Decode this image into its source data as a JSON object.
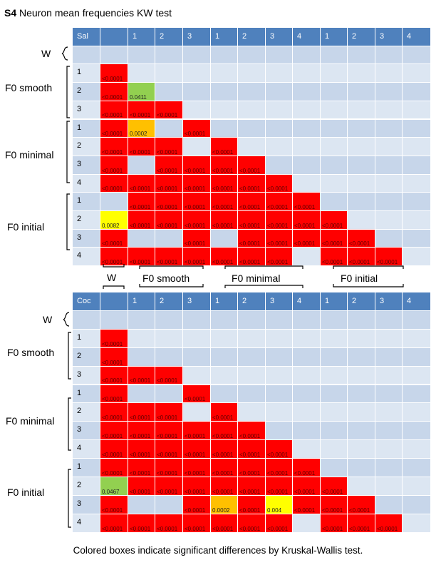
{
  "title": {
    "bold": "S4",
    "text": "Neuron mean frequencies KW test"
  },
  "caption": "Colored boxes indicate significant differences by Kruskal-Wallis test.",
  "groups": [
    "W",
    "F0 smooth",
    "F0 minimal",
    "F0 initial"
  ],
  "columns": [
    "",
    "1",
    "2",
    "3",
    "1",
    "2",
    "3",
    "4",
    "1",
    "2",
    "3",
    "4"
  ],
  "row_labels": [
    "",
    "1",
    "2",
    "3",
    "1",
    "2",
    "3",
    "4",
    "1",
    "2",
    "3",
    "4"
  ],
  "colors": {
    "red": "#ff0000",
    "green": "#92d050",
    "orange": "#ffc000",
    "yellow": "#ffff00",
    "header": "#4f81bd"
  },
  "chart_data": [
    {
      "type": "table",
      "corner": "Sal",
      "cells": [
        [
          1,
          0,
          "red",
          "<0.0001"
        ],
        [
          2,
          0,
          "red",
          "<0.0001"
        ],
        [
          2,
          1,
          "green",
          "0.0411"
        ],
        [
          3,
          0,
          "red",
          "<0.0001"
        ],
        [
          3,
          1,
          "red",
          "<0.0001"
        ],
        [
          3,
          2,
          "red",
          "<0.0001"
        ],
        [
          4,
          0,
          "red",
          "<0.0001"
        ],
        [
          4,
          1,
          "orange",
          "0.0002"
        ],
        [
          4,
          3,
          "red",
          "<0.0001"
        ],
        [
          5,
          0,
          "red",
          "<0.0001"
        ],
        [
          5,
          1,
          "red",
          "<0.0001"
        ],
        [
          5,
          2,
          "red",
          "<0.0001"
        ],
        [
          5,
          4,
          "red",
          "<0.0001"
        ],
        [
          6,
          0,
          "red",
          "<0.0001"
        ],
        [
          6,
          2,
          "red",
          "<0.0001"
        ],
        [
          6,
          3,
          "red",
          "<0.0001"
        ],
        [
          6,
          4,
          "red",
          "<0.0001"
        ],
        [
          6,
          5,
          "red",
          "<0.0001"
        ],
        [
          7,
          0,
          "red",
          "<0.0001"
        ],
        [
          7,
          1,
          "red",
          "<0.0001"
        ],
        [
          7,
          2,
          "red",
          "<0.0001"
        ],
        [
          7,
          3,
          "red",
          "<0.0001"
        ],
        [
          7,
          4,
          "red",
          "<0.0001"
        ],
        [
          7,
          5,
          "red",
          "<0.0001"
        ],
        [
          7,
          6,
          "red",
          "<0.0001"
        ],
        [
          8,
          1,
          "red",
          "<0.0001"
        ],
        [
          8,
          2,
          "red",
          "<0.0001"
        ],
        [
          8,
          3,
          "red",
          "<0.0001"
        ],
        [
          8,
          4,
          "red",
          "<0.0001"
        ],
        [
          8,
          5,
          "red",
          "<0.0001"
        ],
        [
          8,
          6,
          "red",
          "<0.0001"
        ],
        [
          8,
          7,
          "red",
          "<0.0001"
        ],
        [
          9,
          0,
          "yellow",
          "0.0082"
        ],
        [
          9,
          1,
          "red",
          "<0.0001"
        ],
        [
          9,
          2,
          "red",
          "<0.0001"
        ],
        [
          9,
          3,
          "red",
          "<0.0001"
        ],
        [
          9,
          4,
          "red",
          "<0.0001"
        ],
        [
          9,
          5,
          "red",
          "<0.0001"
        ],
        [
          9,
          6,
          "red",
          "<0.0001"
        ],
        [
          9,
          7,
          "red",
          "<0.0001"
        ],
        [
          9,
          8,
          "red",
          "<0.0001"
        ],
        [
          10,
          0,
          "red",
          "<0.0001"
        ],
        [
          10,
          3,
          "red",
          "<0.0001"
        ],
        [
          10,
          5,
          "red",
          "<0.0001"
        ],
        [
          10,
          6,
          "red",
          "<0.0001"
        ],
        [
          10,
          7,
          "red",
          "<0.0001"
        ],
        [
          10,
          8,
          "red",
          "<0.0001"
        ],
        [
          10,
          9,
          "red",
          "<0.0001"
        ],
        [
          11,
          0,
          "red",
          "<0.0001"
        ],
        [
          11,
          1,
          "red",
          "<0.0001"
        ],
        [
          11,
          2,
          "red",
          "<0.0001"
        ],
        [
          11,
          3,
          "red",
          "<0.0001"
        ],
        [
          11,
          4,
          "red",
          "<0.0001"
        ],
        [
          11,
          5,
          "red",
          "<0.0001"
        ],
        [
          11,
          6,
          "red",
          "<0.0001"
        ],
        [
          11,
          8,
          "red",
          "<0.0001"
        ],
        [
          11,
          9,
          "red",
          "<0.0001"
        ],
        [
          11,
          10,
          "red",
          "<0.0001"
        ]
      ]
    },
    {
      "type": "table",
      "corner": "Coc",
      "cells": [
        [
          1,
          0,
          "red",
          "<0.0001"
        ],
        [
          2,
          0,
          "red",
          "<0.0001"
        ],
        [
          3,
          0,
          "red",
          "<0.0001"
        ],
        [
          3,
          1,
          "red",
          "<0.0001"
        ],
        [
          3,
          2,
          "red",
          "<0.0001"
        ],
        [
          4,
          0,
          "red",
          "<0.0001"
        ],
        [
          4,
          3,
          "red",
          "<0.0001"
        ],
        [
          5,
          0,
          "red",
          "<0.0001"
        ],
        [
          5,
          1,
          "red",
          "<0.0001"
        ],
        [
          5,
          2,
          "red",
          "<0.0001"
        ],
        [
          5,
          4,
          "red",
          "<0.0001"
        ],
        [
          6,
          0,
          "red",
          "<0.0001"
        ],
        [
          6,
          1,
          "red",
          "<0.0001"
        ],
        [
          6,
          2,
          "red",
          "<0.0001"
        ],
        [
          6,
          3,
          "red",
          "<0.0001"
        ],
        [
          6,
          4,
          "red",
          "<0.0001"
        ],
        [
          6,
          5,
          "red",
          "<0.0001"
        ],
        [
          7,
          0,
          "red",
          "<0.0001"
        ],
        [
          7,
          1,
          "red",
          "<0.0001"
        ],
        [
          7,
          2,
          "red",
          "<0.0001"
        ],
        [
          7,
          3,
          "red",
          "<0.0001"
        ],
        [
          7,
          4,
          "red",
          "<0.0001"
        ],
        [
          7,
          5,
          "red",
          "<0.0001"
        ],
        [
          7,
          6,
          "red",
          "<0.0001"
        ],
        [
          8,
          0,
          "red",
          "<0.0001"
        ],
        [
          8,
          1,
          "red",
          "<0.0001"
        ],
        [
          8,
          2,
          "red",
          "<0.0001"
        ],
        [
          8,
          3,
          "red",
          "<0.0001"
        ],
        [
          8,
          4,
          "red",
          "<0.0001"
        ],
        [
          8,
          5,
          "red",
          "<0.0001"
        ],
        [
          8,
          6,
          "red",
          "<0.0001"
        ],
        [
          8,
          7,
          "red",
          "<0.0001"
        ],
        [
          9,
          0,
          "green",
          "0.0467"
        ],
        [
          9,
          1,
          "red",
          "<0.0001"
        ],
        [
          9,
          2,
          "red",
          "<0.0001"
        ],
        [
          9,
          3,
          "red",
          "<0.0001"
        ],
        [
          9,
          4,
          "red",
          "<0.0001"
        ],
        [
          9,
          5,
          "red",
          "<0.0001"
        ],
        [
          9,
          6,
          "red",
          "<0.0001"
        ],
        [
          9,
          7,
          "red",
          "<0.0001"
        ],
        [
          9,
          8,
          "red",
          "<0.0001"
        ],
        [
          10,
          0,
          "red",
          "<0.0001"
        ],
        [
          10,
          3,
          "red",
          "<0.0001"
        ],
        [
          10,
          4,
          "orange",
          "0.0002"
        ],
        [
          10,
          5,
          "red",
          "<0.0001"
        ],
        [
          10,
          6,
          "yellow",
          "0.004"
        ],
        [
          10,
          7,
          "red",
          "<0.0001"
        ],
        [
          10,
          8,
          "red",
          "<0.0001"
        ],
        [
          10,
          9,
          "red",
          "<0.0001"
        ],
        [
          11,
          0,
          "red",
          "<0.0001"
        ],
        [
          11,
          1,
          "red",
          "<0.0001"
        ],
        [
          11,
          2,
          "red",
          "<0.0001"
        ],
        [
          11,
          3,
          "red",
          "<0.0001"
        ],
        [
          11,
          4,
          "red",
          "<0.0001"
        ],
        [
          11,
          5,
          "red",
          "<0.0001"
        ],
        [
          11,
          6,
          "red",
          "<0.0001"
        ],
        [
          11,
          8,
          "red",
          "<0.0001"
        ],
        [
          11,
          9,
          "red",
          "<0.0001"
        ],
        [
          11,
          10,
          "red",
          "<0.0001"
        ]
      ]
    }
  ]
}
